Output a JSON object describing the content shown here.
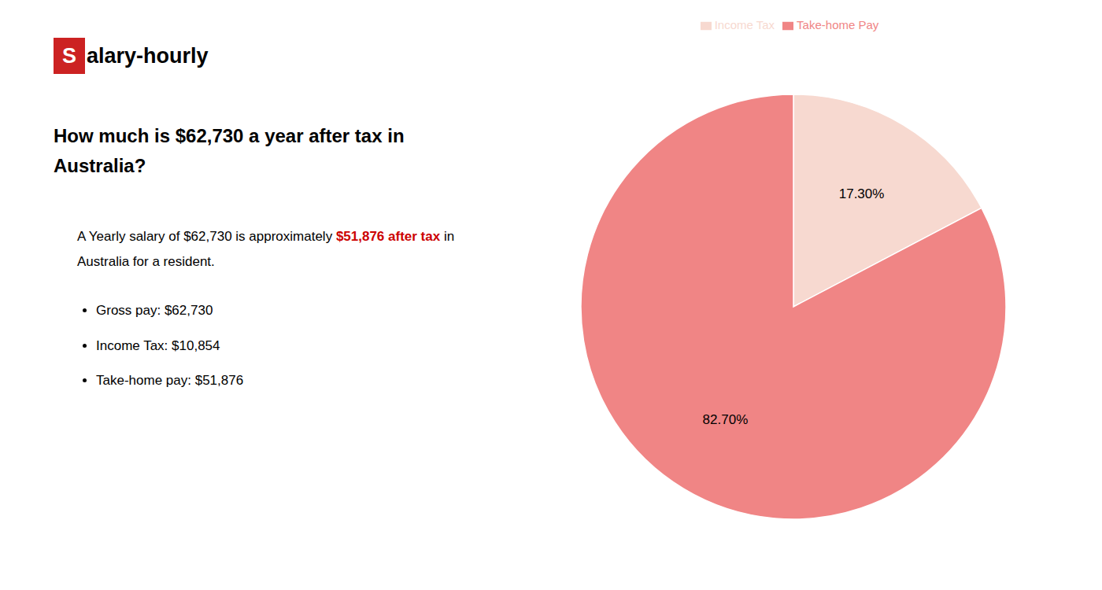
{
  "chart_data": {
    "type": "pie",
    "title": "How much is $62,730 a year after tax in Australia?",
    "annotations": [
      [
        {
          "text": "S",
          "color": "#cc2222"
        },
        {
          "text": "alary-hourly"
        }
      ],
      [
        {
          "text": "A Yearly salary of $62,730 is approximately "
        },
        {
          "text": "$51,876 after tax",
          "color": "#cc0000"
        },
        {
          "text": " in"
        }
      ],
      [
        {
          "text": "Australia for a resident."
        }
      ],
      [
        {
          "text": "Gross pay: $62,730"
        }
      ],
      [
        {
          "text": "Income Tax: $10,854"
        }
      ],
      [
        {
          "text": "Take-home pay: $51,876"
        }
      ]
    ],
    "categories": [
      "Income Tax",
      "Take-home Pay"
    ],
    "values": [
      17.3,
      82.7
    ],
    "value_labels": [
      "17.30%",
      "82.70%"
    ],
    "colors": [
      "#f7d9d0",
      "#f08585"
    ],
    "data_labels": true,
    "legend": "top"
  }
}
